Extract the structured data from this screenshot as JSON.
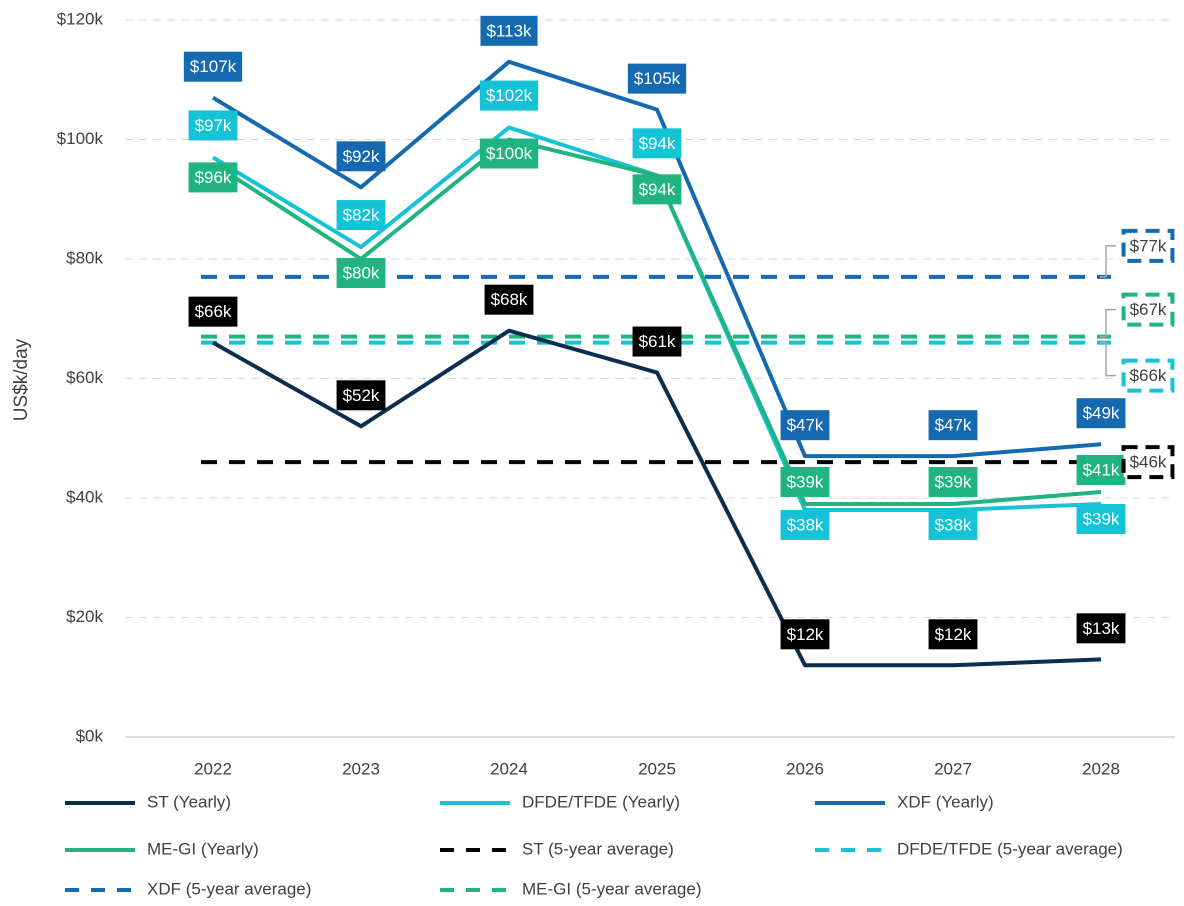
{
  "chart_data": {
    "type": "line",
    "y_axis_label": "US$k/day",
    "categories": [
      "2022",
      "2023",
      "2024",
      "2025",
      "2026",
      "2027",
      "2028"
    ],
    "ylim": [
      0,
      120
    ],
    "yticks": [
      {
        "value": 0,
        "label": "$0k"
      },
      {
        "value": 20,
        "label": "$20k"
      },
      {
        "value": 40,
        "label": "$40k"
      },
      {
        "value": 60,
        "label": "$60k"
      },
      {
        "value": 80,
        "label": "$80k"
      },
      {
        "value": 100,
        "label": "$100k"
      },
      {
        "value": 120,
        "label": "$120k"
      }
    ],
    "grid": true,
    "series": [
      {
        "name": "ST (Yearly)",
        "color": "#0b2d4e",
        "label_color": "#000000",
        "values": [
          66,
          52,
          68,
          61,
          12,
          12,
          13
        ],
        "value_labels": [
          "$66k",
          "$52k",
          "$68k",
          "$61k",
          "$12k",
          "$12k",
          "$13k"
        ]
      },
      {
        "name": "DFDE/TFDE (Yearly)",
        "color": "#14c3d6",
        "label_color": "#14c3d6",
        "values": [
          97,
          82,
          102,
          94,
          38,
          38,
          39
        ],
        "value_labels": [
          "$97k",
          "$82k",
          "$102k",
          "$94k",
          "$38k",
          "$38k",
          "$39k"
        ]
      },
      {
        "name": "XDF (Yearly)",
        "color": "#1469b0",
        "label_color": "#1469b0",
        "values": [
          107,
          92,
          113,
          105,
          47,
          47,
          49
        ],
        "value_labels": [
          "$107k",
          "$92k",
          "$113k",
          "$105k",
          "$47k",
          "$47k",
          "$49k"
        ]
      },
      {
        "name": "ME-GI (Yearly)",
        "color": "#1fb482",
        "label_color": "#1fb482",
        "values": [
          96,
          80,
          100,
          94,
          39,
          39,
          41
        ],
        "value_labels": [
          "$96k",
          "$80k",
          "$100k",
          "$94k",
          "$39k",
          "$39k",
          "$41k"
        ]
      },
      {
        "name": "ST (5-year average)",
        "color": "#000000",
        "dashed": true,
        "value": 46,
        "value_label": "$46k"
      },
      {
        "name": "DFDE/TFDE (5-year average)",
        "color": "#14c3d6",
        "dashed": true,
        "value": 66,
        "value_label": "$66k"
      },
      {
        "name": "XDF (5-year average)",
        "color": "#1469b0",
        "dashed": true,
        "value": 77,
        "value_label": "$77k"
      },
      {
        "name": "ME-GI (5-year average)",
        "color": "#1fb482",
        "dashed": true,
        "value": 67,
        "value_label": "$67k"
      }
    ]
  }
}
